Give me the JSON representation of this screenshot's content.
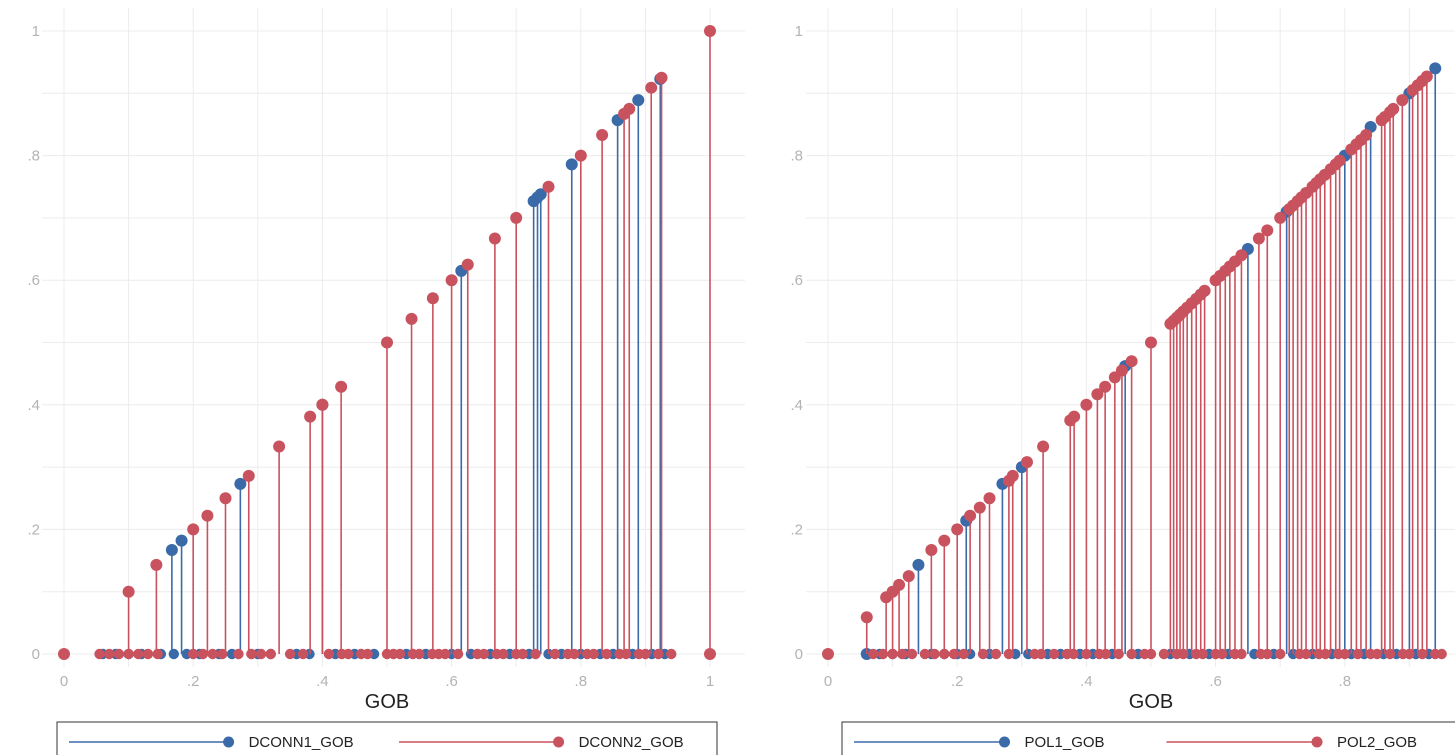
{
  "colors": {
    "series1": "#3a6aa8",
    "series2": "#c9525f",
    "grid": "#ececec",
    "tick_text": "#b3b3b3"
  },
  "chart_data": [
    {
      "type": "stem",
      "xlabel": "GOB",
      "ylabel": "",
      "xlim": [
        0,
        1
      ],
      "ylim": [
        0,
        1
      ],
      "xticks": [
        0,
        0.2,
        0.4,
        0.6,
        0.8,
        1
      ],
      "xtick_labels": [
        "0",
        ".2",
        ".4",
        ".6",
        ".8",
        "1"
      ],
      "yticks": [
        0,
        0.2,
        0.4,
        0.6,
        0.8,
        1
      ],
      "ytick_labels": [
        "0",
        ".2",
        ".4",
        ".6",
        ".8",
        "1"
      ],
      "grid": true,
      "legend_position": "bottom",
      "series": [
        {
          "name": "DCONN1_GOB",
          "points": [
            [
              0.167,
              0.167
            ],
            [
              0.182,
              0.182
            ],
            [
              0.273,
              0.273
            ],
            [
              0.4,
              0.4
            ],
            [
              0.615,
              0.615
            ],
            [
              0.727,
              0.727
            ],
            [
              0.733,
              0.733
            ],
            [
              0.738,
              0.738
            ],
            [
              0.786,
              0.786
            ],
            [
              0.857,
              0.857
            ],
            [
              0.889,
              0.889
            ],
            [
              0.923,
              0.923
            ]
          ],
          "zero_x": [
            0.06,
            0.08,
            0.1,
            0.12,
            0.15,
            0.17,
            0.19,
            0.21,
            0.24,
            0.26,
            0.3,
            0.32,
            0.36,
            0.38,
            0.42,
            0.45,
            0.48,
            0.53,
            0.56,
            0.6,
            0.63,
            0.66,
            0.69,
            0.72,
            0.75,
            0.77,
            0.8,
            0.83,
            0.85,
            0.88,
            0.91,
            0.93
          ]
        },
        {
          "name": "DCONN2_GOB",
          "points": [
            [
              0,
              0
            ],
            [
              0.1,
              0.1
            ],
            [
              0.143,
              0.143
            ],
            [
              0.2,
              0.2
            ],
            [
              0.222,
              0.222
            ],
            [
              0.25,
              0.25
            ],
            [
              0.286,
              0.286
            ],
            [
              0.333,
              0.333
            ],
            [
              0.381,
              0.381
            ],
            [
              0.4,
              0.4
            ],
            [
              0.429,
              0.429
            ],
            [
              0.5,
              0.5
            ],
            [
              0.538,
              0.538
            ],
            [
              0.571,
              0.571
            ],
            [
              0.6,
              0.6
            ],
            [
              0.625,
              0.625
            ],
            [
              0.667,
              0.667
            ],
            [
              0.7,
              0.7
            ],
            [
              0.75,
              0.75
            ],
            [
              0.8,
              0.8
            ],
            [
              0.833,
              0.833
            ],
            [
              0.867,
              0.867
            ],
            [
              0.875,
              0.875
            ],
            [
              0.909,
              0.909
            ],
            [
              0.925,
              0.925
            ],
            [
              1,
              1
            ],
            [
              1,
              0
            ]
          ],
          "zero_x": [
            0.055,
            0.07,
            0.085,
            0.1,
            0.115,
            0.13,
            0.145,
            0.2,
            0.215,
            0.23,
            0.245,
            0.27,
            0.29,
            0.305,
            0.32,
            0.35,
            0.37,
            0.41,
            0.43,
            0.44,
            0.46,
            0.47,
            0.5,
            0.51,
            0.52,
            0.54,
            0.55,
            0.57,
            0.58,
            0.59,
            0.61,
            0.64,
            0.65,
            0.67,
            0.68,
            0.7,
            0.71,
            0.73,
            0.76,
            0.78,
            0.79,
            0.81,
            0.82,
            0.84,
            0.86,
            0.87,
            0.89,
            0.9,
            0.92,
            0.94
          ]
        }
      ]
    },
    {
      "type": "stem",
      "xlabel": "GOB",
      "ylabel": "",
      "xlim": [
        0,
        1
      ],
      "ylim": [
        0,
        1
      ],
      "xticks": [
        0,
        0.2,
        0.4,
        0.6,
        0.8
      ],
      "xtick_labels": [
        "0",
        ".2",
        ".4",
        ".6",
        ".8"
      ],
      "yticks": [
        0,
        0.2,
        0.4,
        0.6,
        0.8,
        1
      ],
      "ytick_labels": [
        "0",
        ".2",
        ".4",
        ".6",
        ".8",
        "1"
      ],
      "grid": true,
      "legend_position": "bottom",
      "series": [
        {
          "name": "POL1_GOB",
          "points": [
            [
              0.06,
              0
            ],
            [
              0.14,
              0.143
            ],
            [
              0.214,
              0.214
            ],
            [
              0.27,
              0.273
            ],
            [
              0.3,
              0.3
            ],
            [
              0.46,
              0.462
            ],
            [
              0.65,
              0.65
            ],
            [
              0.71,
              0.71
            ],
            [
              0.8,
              0.8
            ],
            [
              0.84,
              0.846
            ],
            [
              0.9,
              0.9
            ],
            [
              0.94,
              0.94
            ]
          ],
          "zero_x": [
            0.08,
            0.1,
            0.12,
            0.16,
            0.18,
            0.2,
            0.22,
            0.25,
            0.29,
            0.31,
            0.34,
            0.36,
            0.39,
            0.41,
            0.44,
            0.48,
            0.53,
            0.56,
            0.59,
            0.62,
            0.66,
            0.69,
            0.72,
            0.75,
            0.78,
            0.81,
            0.83,
            0.86,
            0.88,
            0.91,
            0.93
          ]
        },
        {
          "name": "POL2_GOB",
          "points": [
            [
              0,
              0
            ],
            [
              0.06,
              0.059
            ],
            [
              0.09,
              0.091
            ],
            [
              0.1,
              0.1
            ],
            [
              0.11,
              0.111
            ],
            [
              0.125,
              0.125
            ],
            [
              0.16,
              0.167
            ],
            [
              0.18,
              0.182
            ],
            [
              0.2,
              0.2
            ],
            [
              0.22,
              0.222
            ],
            [
              0.235,
              0.235
            ],
            [
              0.25,
              0.25
            ],
            [
              0.28,
              0.278
            ],
            [
              0.286,
              0.286
            ],
            [
              0.308,
              0.308
            ],
            [
              0.333,
              0.333
            ],
            [
              0.375,
              0.375
            ],
            [
              0.381,
              0.381
            ],
            [
              0.4,
              0.4
            ],
            [
              0.417,
              0.417
            ],
            [
              0.429,
              0.429
            ],
            [
              0.444,
              0.444
            ],
            [
              0.455,
              0.455
            ],
            [
              0.47,
              0.47
            ],
            [
              0.5,
              0.5
            ],
            [
              0.53,
              0.53
            ],
            [
              0.535,
              0.535
            ],
            [
              0.54,
              0.54
            ],
            [
              0.545,
              0.545
            ],
            [
              0.55,
              0.55
            ],
            [
              0.556,
              0.556
            ],
            [
              0.563,
              0.563
            ],
            [
              0.57,
              0.57
            ],
            [
              0.577,
              0.577
            ],
            [
              0.583,
              0.583
            ],
            [
              0.6,
              0.6
            ],
            [
              0.607,
              0.607
            ],
            [
              0.615,
              0.615
            ],
            [
              0.622,
              0.622
            ],
            [
              0.63,
              0.63
            ],
            [
              0.64,
              0.64
            ],
            [
              0.667,
              0.667
            ],
            [
              0.68,
              0.68
            ],
            [
              0.7,
              0.7
            ],
            [
              0.714,
              0.714
            ],
            [
              0.72,
              0.72
            ],
            [
              0.727,
              0.727
            ],
            [
              0.733,
              0.733
            ],
            [
              0.74,
              0.74
            ],
            [
              0.75,
              0.75
            ],
            [
              0.756,
              0.756
            ],
            [
              0.762,
              0.762
            ],
            [
              0.769,
              0.769
            ],
            [
              0.778,
              0.778
            ],
            [
              0.786,
              0.786
            ],
            [
              0.792,
              0.792
            ],
            [
              0.81,
              0.81
            ],
            [
              0.818,
              0.818
            ],
            [
              0.825,
              0.825
            ],
            [
              0.833,
              0.833
            ],
            [
              0.857,
              0.857
            ],
            [
              0.862,
              0.862
            ],
            [
              0.87,
              0.87
            ],
            [
              0.875,
              0.875
            ],
            [
              0.889,
              0.889
            ],
            [
              0.905,
              0.905
            ],
            [
              0.913,
              0.913
            ],
            [
              0.92,
              0.92
            ],
            [
              0.927,
              0.927
            ]
          ],
          "zero_x": [
            0.07,
            0.085,
            0.1,
            0.115,
            0.13,
            0.15,
            0.165,
            0.18,
            0.195,
            0.21,
            0.24,
            0.26,
            0.28,
            0.32,
            0.33,
            0.35,
            0.37,
            0.38,
            0.4,
            0.42,
            0.43,
            0.45,
            0.47,
            0.49,
            0.5,
            0.52,
            0.54,
            0.55,
            0.57,
            0.58,
            0.6,
            0.61,
            0.63,
            0.64,
            0.67,
            0.68,
            0.7,
            0.73,
            0.74,
            0.76,
            0.77,
            0.79,
            0.8,
            0.82,
            0.84,
            0.85,
            0.87,
            0.89,
            0.9,
            0.92,
            0.94,
            0.95
          ]
        }
      ]
    }
  ]
}
